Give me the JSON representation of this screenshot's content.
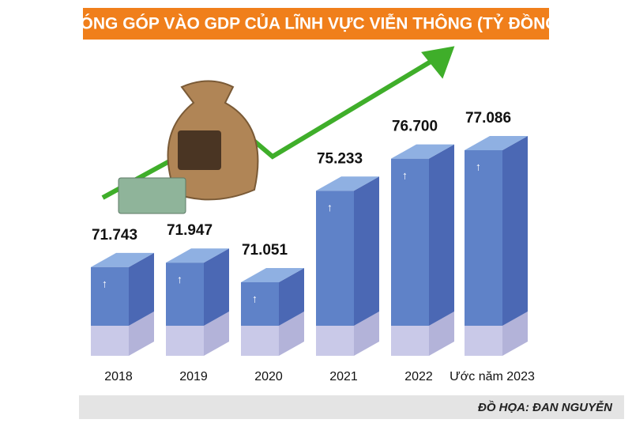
{
  "chart_data": {
    "type": "bar",
    "title": "ĐÓNG GÓP VÀO GDP CỦA LĨNH VỰC VIỄN THÔNG (TỶ ĐỒNG)",
    "categories": [
      "2018",
      "2019",
      "2020",
      "2021",
      "2022",
      "Ước năm 2023"
    ],
    "values": [
      71743,
      71947,
      71051,
      75233,
      76700,
      77086
    ],
    "value_labels": [
      "71.743",
      "71.947",
      "71.051",
      "75.233",
      "76.700",
      "77.086"
    ],
    "color": "#5f82c8"
  },
  "credit": "ĐỒ HỌA: ĐAN NGUYỄN"
}
